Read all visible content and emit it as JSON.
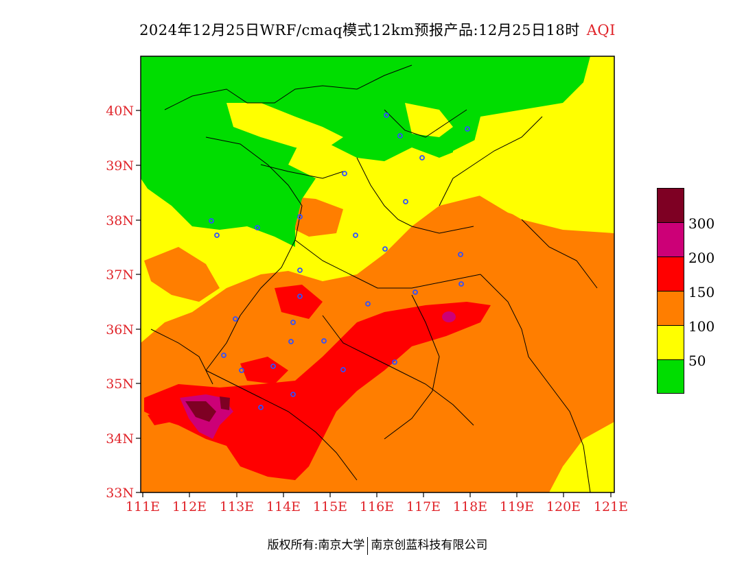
{
  "title": "2024年12月25日WRF/cmaq模式12km预报产品:12月25日18时",
  "title_product": "AQI",
  "lat_labels": [
    "40N",
    "39N",
    "38N",
    "37N",
    "36N",
    "35N",
    "34N",
    "33N"
  ],
  "lon_labels": [
    "111E",
    "112E",
    "113E",
    "114E",
    "115E",
    "116E",
    "117E",
    "118E",
    "119E",
    "120E",
    "121E"
  ],
  "legend": {
    "levels": [
      {
        "label": "50",
        "color": "#00dd00"
      },
      {
        "label": "100",
        "color": "#ffff00"
      },
      {
        "label": "150",
        "color": "#ff7e00"
      },
      {
        "label": "200",
        "color": "#ff0000"
      },
      {
        "label": "300",
        "color": "#cc0077"
      },
      {
        "label": "",
        "color": "#7e0023"
      }
    ]
  },
  "footer": {
    "left": "版权所有:南京大学",
    "right": "南京创蓝科技有限公司"
  },
  "colors": {
    "good": "#00dd00",
    "moderate": "#ffff00",
    "light": "#ff7e00",
    "medium": "#ff0000",
    "heavy": "#cc0077",
    "severe": "#7e0023",
    "axis_label": "#e0242a",
    "station": "#3050ff"
  }
}
